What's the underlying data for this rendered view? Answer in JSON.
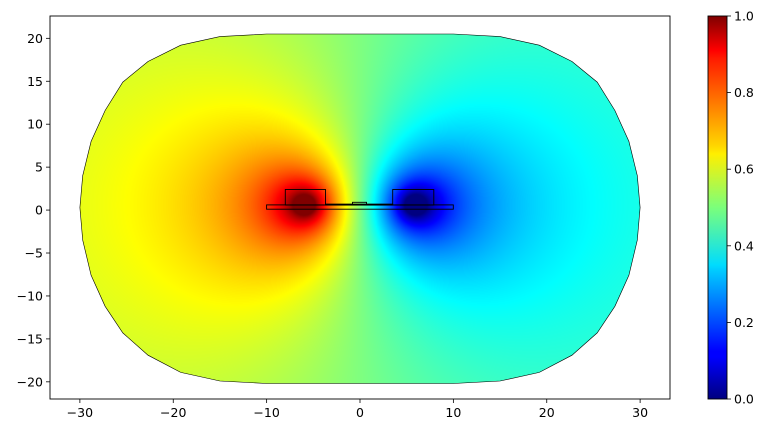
{
  "chart_data": {
    "type": "heatmap",
    "title": "",
    "xlabel": "",
    "ylabel": "",
    "xlim": [
      -33.2,
      33.2
    ],
    "ylim": [
      -22,
      22.6
    ],
    "x_ticks": [
      -30,
      -20,
      -10,
      0,
      10,
      20,
      30
    ],
    "x_tick_labels": [
      "−30",
      "−20",
      "−10",
      "0",
      "10",
      "20",
      "30"
    ],
    "y_ticks": [
      -20,
      -15,
      -10,
      -5,
      0,
      5,
      10,
      15,
      20
    ],
    "y_tick_labels": [
      "−20",
      "−15",
      "−10",
      "−5",
      "0",
      "5",
      "10",
      "15",
      "20"
    ],
    "colormap": "jet",
    "colorbar": {
      "range": [
        0,
        1
      ],
      "ticks": [
        0,
        0.2,
        0.4,
        0.6,
        0.8,
        1
      ],
      "tick_labels": [
        "0.0",
        "0.2",
        "0.4",
        "0.6",
        "0.8",
        "1.0"
      ]
    },
    "field": {
      "description_free": true,
      "positive_source": [
        -5.8,
        0.6
      ],
      "negative_source": [
        5.8,
        0.6
      ],
      "value_at_positive_source": 1.0,
      "value_at_negative_source": 0.0,
      "value_far_left": 0.72,
      "value_far_right": 0.3
    },
    "domain_boundary": [
      [
        -30,
        0.3
      ],
      [
        -29.7,
        4
      ],
      [
        -28.8,
        8
      ],
      [
        -27.3,
        11.6
      ],
      [
        -25.4,
        14.9
      ],
      [
        -22.7,
        17.3
      ],
      [
        -19.2,
        19.2
      ],
      [
        -15,
        20.2
      ],
      [
        -10,
        20.5
      ],
      [
        10,
        20.5
      ],
      [
        15,
        20.2
      ],
      [
        19.2,
        19.2
      ],
      [
        22.7,
        17.3
      ],
      [
        25.4,
        14.9
      ],
      [
        27.3,
        11.6
      ],
      [
        28.8,
        8
      ],
      [
        29.7,
        4
      ],
      [
        30,
        0.3
      ],
      [
        29.7,
        -3.5
      ],
      [
        28.8,
        -7.6
      ],
      [
        27.3,
        -11.2
      ],
      [
        25.4,
        -14.3
      ],
      [
        22.7,
        -16.9
      ],
      [
        19.2,
        -18.9
      ],
      [
        15,
        -19.9
      ],
      [
        10,
        -20.2
      ],
      [
        -10,
        -20.2
      ],
      [
        -15,
        -19.9
      ],
      [
        -19.2,
        -18.9
      ],
      [
        -22.7,
        -16.9
      ],
      [
        -25.4,
        -14.3
      ],
      [
        -27.3,
        -11.2
      ],
      [
        -28.8,
        -7.6
      ],
      [
        -29.7,
        -3.5
      ]
    ],
    "outlined_components": [
      {
        "x": [
          -10,
          10
        ],
        "y": [
          0.1,
          0.6
        ]
      },
      {
        "x": [
          -8,
          -3.7
        ],
        "y": [
          0.6,
          2.4
        ]
      },
      {
        "x": [
          3.5,
          7.9
        ],
        "y": [
          0.6,
          2.4
        ]
      },
      {
        "x": [
          -0.8,
          0.7
        ],
        "y": [
          0.6,
          0.9
        ]
      },
      {
        "x": [
          -3.7,
          3.5
        ],
        "y": [
          0.6,
          0.7
        ]
      }
    ]
  }
}
